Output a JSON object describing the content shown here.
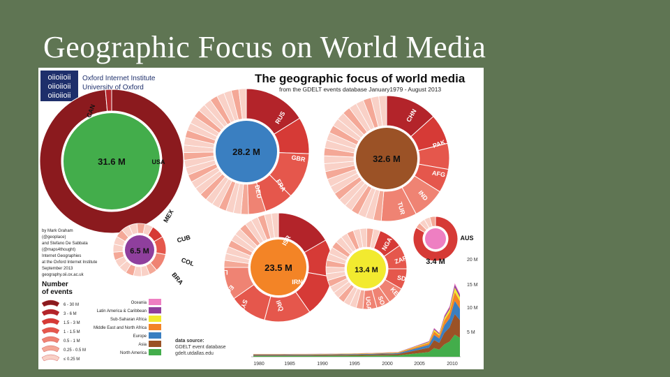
{
  "slide": {
    "title": "Geographic Focus on World Media"
  },
  "infographic": {
    "institute_lines": [
      "Oxford Internet Institute",
      "University of Oxford"
    ],
    "logo_text": "oiioiioii",
    "headline": "The geographic focus of world media",
    "subheadline": "from the GDELT events database January1979 - August 2013",
    "credits": [
      "by Mark Graham",
      "(@geoplace)",
      "and Stefano De Sabbata",
      "(@maps4thought)",
      "Internet Geographies",
      "at the Oxford Internet Institute",
      "September 2013",
      "geography.oii.ox.ac.uk"
    ],
    "legend_title": [
      "Number",
      "of events"
    ],
    "size_legend": [
      "6 - 30 M",
      "3 - 6 M",
      "1.5 - 3 M",
      "1 - 1.5 M",
      "0.5 - 1 M",
      "0.25 - 0.5 M",
      "≤ 0.25 M"
    ],
    "region_legend": [
      {
        "label": "Oceania",
        "color": "#ee7fc2"
      },
      {
        "label": "Latin America & Caribbean",
        "color": "#8f3f9d"
      },
      {
        "label": "Sub-Saharan Africa",
        "color": "#f2ea2f"
      },
      {
        "label": "Middle East and North Africa",
        "color": "#f38426"
      },
      {
        "label": "Europe",
        "color": "#3a7fc1"
      },
      {
        "label": "Asia",
        "color": "#9b5226"
      },
      {
        "label": "North America",
        "color": "#43ad4b"
      }
    ],
    "data_source": [
      "data source:",
      "GDELT event database",
      "gdelt.utdallas.edu"
    ],
    "donuts": [
      {
        "region": "North America",
        "total": "31.6 M",
        "color": "#43ad4b",
        "labels": [
          "USA",
          "CAN",
          "MEX"
        ]
      },
      {
        "region": "Europe",
        "total": "28.2 M",
        "color": "#3a7fc1",
        "labels": [
          "RUS",
          "GBR",
          "FRA",
          "DEU"
        ]
      },
      {
        "region": "Asia",
        "total": "32.6 M",
        "color": "#9b5226",
        "labels": [
          "CHN",
          "PAK",
          "AFG",
          "IND",
          "TUR"
        ]
      },
      {
        "region": "Latin America & Caribbean",
        "total": "6.5 M",
        "color": "#8f3f9d",
        "labels": [
          "CUB",
          "COL",
          "BRA"
        ]
      },
      {
        "region": "Middle East and North Africa",
        "total": "23.5 M",
        "color": "#f38426",
        "labels": [
          "ISR",
          "IRN",
          "IRQ",
          "SYR",
          "EGY",
          "LYB"
        ]
      },
      {
        "region": "Sub-Saharan Africa",
        "total": "13.4 M",
        "color": "#f2ea2f",
        "labels": [
          "NGA",
          "ZAF",
          "SDN",
          "KEN",
          "SOM",
          "UGA"
        ]
      },
      {
        "region": "Oceania",
        "total": "3.4 M",
        "color": "#ee7fc2",
        "labels": [
          "AUS"
        ]
      }
    ],
    "timeline": {
      "x_ticks": [
        "1980",
        "1985",
        "1990",
        "1995",
        "2000",
        "2005",
        "2010"
      ],
      "y_ticks": [
        "20 M",
        "15 M",
        "10 M",
        "5 M"
      ]
    }
  }
}
